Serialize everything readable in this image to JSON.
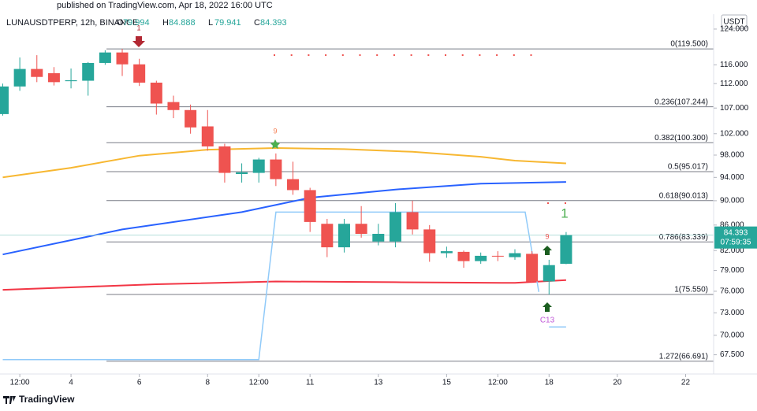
{
  "header": {
    "published": "published on TradingView.com, Apr 18, 2022 16:00 UTC"
  },
  "footer": {
    "brand": "TradingView"
  },
  "chart_data": {
    "type": "candlestick",
    "title": "LUNAUSDTPERP, 12h, BINANCE",
    "ohlc_labels": [
      "O",
      "H",
      "L",
      "C"
    ],
    "currency": "USDT",
    "countdown": "07:59:35",
    "log_y": true,
    "grid": false,
    "xlim": [
      1.92,
      22.82
    ],
    "xticks": [
      {
        "value": 2.5,
        "label": "12:00"
      },
      4,
      6,
      8,
      {
        "value": 9.5,
        "label": "12:00"
      },
      11,
      13,
      15,
      {
        "value": 16.5,
        "label": "12:00"
      },
      18,
      20,
      22
    ],
    "ylim": [
      65.6,
      127.5
    ],
    "yticks": [
      {
        "value": 67.5,
        "label": "67.500"
      },
      {
        "value": 70,
        "label": "70.000"
      },
      {
        "value": 73,
        "label": "73.000"
      },
      {
        "value": 76,
        "label": "76.000"
      },
      {
        "value": 79,
        "label": "79.000"
      },
      {
        "value": 82,
        "label": "82.000"
      },
      {
        "value": 86,
        "label": "86.000"
      },
      {
        "value": 90,
        "label": "90.000"
      },
      {
        "value": 94,
        "label": "94.000"
      },
      {
        "value": 98,
        "label": "98.000"
      },
      {
        "value": 102,
        "label": "102.000"
      },
      {
        "value": 107,
        "label": "107.000"
      },
      {
        "value": 112,
        "label": "112.000"
      },
      {
        "value": 116,
        "label": "116.000"
      },
      {
        "value": 124,
        "label": "124.000"
      }
    ],
    "x": [
      2,
      2.5,
      3,
      3.5,
      4,
      4.5,
      5,
      5.5,
      6,
      6.5,
      7,
      7.5,
      8,
      8.5,
      9,
      9.5,
      10,
      10.5,
      11,
      11.5,
      12,
      12.5,
      13,
      13.5,
      14,
      14.5,
      15,
      15.5,
      16,
      16.5,
      17,
      17.5,
      18,
      18.5
    ],
    "candles": {
      "up_color": "#26a69a",
      "down_color": "#ef5350",
      "open": [
        105.8,
        111.4,
        115.1,
        114.2,
        112.5,
        112.6,
        116.4,
        118.7,
        116.1,
        112.2,
        108.2,
        106.6,
        103.4,
        99.6,
        94.6,
        94.8,
        97.2,
        93.7,
        91.8,
        86.2,
        82.5,
        86.2,
        83.4,
        83.4,
        88.1,
        85.3,
        81.6,
        81.8,
        80.4,
        81.2,
        81.0,
        81.5,
        77.4,
        79.994
      ],
      "high": [
        112.0,
        117.6,
        118.1,
        115.5,
        115.2,
        116.6,
        119.2,
        119.5,
        117.3,
        112.6,
        109.5,
        107.7,
        106.6,
        100.1,
        96.5,
        97.5,
        98.3,
        96.8,
        92.2,
        87.0,
        87.0,
        89.1,
        86.2,
        89.6,
        90.0,
        86.0,
        82.6,
        82.0,
        81.7,
        81.9,
        82.2,
        81.9,
        80.6,
        84.888
      ],
      "low": [
        105.5,
        110.5,
        112.3,
        111.6,
        111.0,
        109.5,
        116.0,
        113.6,
        111.5,
        105.7,
        105.0,
        102.0,
        98.8,
        93.1,
        93.1,
        93.1,
        92.5,
        91.0,
        84.9,
        81.0,
        81.7,
        84.0,
        82.8,
        82.5,
        84.5,
        80.3,
        80.9,
        79.4,
        80.0,
        80.4,
        80.6,
        77.2,
        75.55,
        79.941
      ],
      "close": [
        111.4,
        115.1,
        113.4,
        112.3,
        112.7,
        116.4,
        118.7,
        116.1,
        112.2,
        107.9,
        106.6,
        103.2,
        99.6,
        94.8,
        94.9,
        97.2,
        93.7,
        91.8,
        86.5,
        82.5,
        86.2,
        84.6,
        84.6,
        88.1,
        85.3,
        81.6,
        81.9,
        80.4,
        81.2,
        81.1,
        81.6,
        77.4,
        79.8,
        84.393
      ]
    },
    "lines": [
      {
        "color": "#f7b731",
        "x": [
          2,
          4,
          6,
          8,
          10,
          12,
          14,
          16,
          17,
          18.5
        ],
        "values": [
          94.0,
          95.7,
          97.9,
          99.0,
          99.3,
          99.1,
          98.6,
          97.7,
          97.0,
          96.5
        ]
      },
      {
        "color": "#2962ff",
        "x": [
          2,
          5.5,
          9,
          11,
          13.5,
          16,
          18.5
        ],
        "values": [
          81.4,
          85.3,
          88.1,
          90.5,
          91.9,
          92.9,
          93.2
        ]
      },
      {
        "color": "#f23645",
        "x": [
          2,
          6.5,
          10,
          13.5,
          17,
          18.5
        ],
        "values": [
          76.2,
          77.0,
          77.4,
          77.3,
          77.2,
          77.6
        ]
      },
      {
        "color": "#90caf9",
        "x": [
          2,
          9.5,
          10,
          17.3,
          17.7,
          17.85,
          18,
          18.5
        ],
        "values": [
          66.9,
          66.9,
          88.1,
          88.1,
          75.9,
          null,
          71.1,
          71.1
        ]
      }
    ],
    "fib_levels": [
      {
        "value": 119.5,
        "label": "0(119.500)"
      },
      {
        "value": 107.244,
        "label": "0.236(107.244)"
      },
      {
        "value": 100.3,
        "label": "0.382(100.300)"
      },
      {
        "value": 95.017,
        "label": "0.5(95.017)"
      },
      {
        "value": 90.013,
        "label": "0.618(90.013)"
      },
      {
        "value": 83.339,
        "label": "0.786(83.339)"
      },
      {
        "value": 75.55,
        "label": "1(75.550)"
      },
      {
        "value": 66.691,
        "label": "1.272(66.691)"
      }
    ],
    "annotations": [
      {
        "text": "1",
        "color": "#b22833"
      },
      {
        "text": "9",
        "color": "#f57c50"
      },
      {
        "text": "9",
        "color": "#ef5350"
      },
      {
        "text": "1",
        "color": "#4caf50"
      },
      {
        "text": "C13",
        "color": "#c058d8"
      }
    ]
  }
}
